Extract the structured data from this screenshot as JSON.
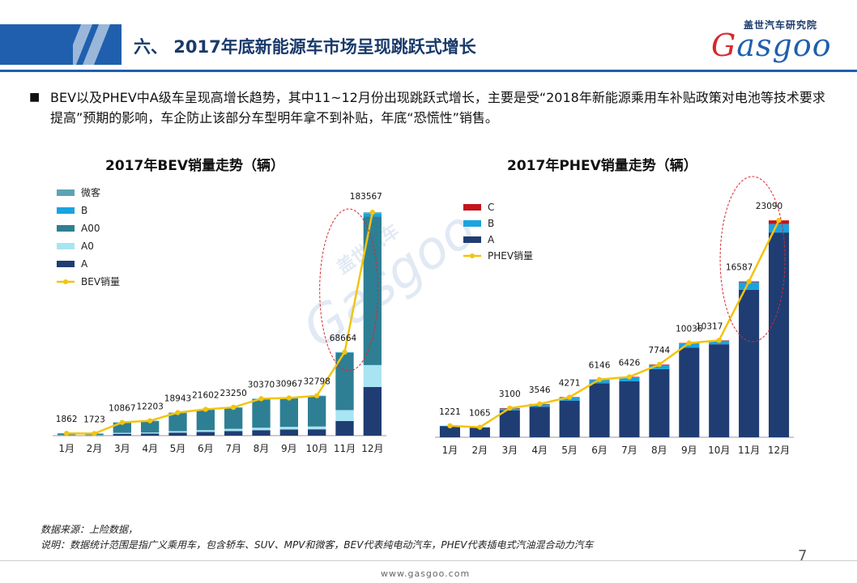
{
  "slide": {
    "title": "六、 2017年底新能源车市场呈现跳跃式增长",
    "bullet": "BEV以及PHEV中A级车呈现高增长趋势，其中11~12月份出现跳跃式增长，主要是受“2018年新能源乘用车补贴政策对电池等技术要求提高”预期的影响，车企防止该部分车型明年拿不到补贴，年底“恐慌性”销售。",
    "bullet_mark": "■",
    "source_note": "数据来源：上险数据，",
    "explain_note": "说明：数据统计范围是指广义乘用车，包含轿车、SUV、MPV和微客，BEV代表纯电动汽车，PHEV代表插电式汽油混合动力汽车",
    "page_number": "7",
    "website": "www.gasgoo.com"
  },
  "logo": {
    "cn": "盖世汽车研究院",
    "en_first": "G",
    "en_rest": "asgoo"
  },
  "watermark": {
    "cn": "盖世汽车",
    "en": "Gasgoo"
  },
  "colors": {
    "brand_blue": "#1f5fae",
    "weike": "#5ba3b5",
    "b": "#1aa3e0",
    "a00": "#2e7f94",
    "a0": "#a9e4f3",
    "a": "#1f3d73",
    "c": "#c0161c",
    "line": "#f2c40f"
  },
  "chart_data": [
    {
      "type": "bar",
      "title": "2017年BEV销量走势（辆）",
      "categories": [
        "1月",
        "2月",
        "3月",
        "4月",
        "5月",
        "6月",
        "7月",
        "8月",
        "9月",
        "10月",
        "11月",
        "12月"
      ],
      "stacked": true,
      "series": [
        {
          "name": "A",
          "color": "#1f3d73",
          "values": [
            300,
            250,
            1500,
            1700,
            2500,
            3000,
            3800,
            4500,
            5000,
            5200,
            12000,
            40000
          ]
        },
        {
          "name": "A0",
          "color": "#a9e4f3",
          "values": [
            200,
            150,
            800,
            900,
            1200,
            1500,
            1800,
            2000,
            2200,
            2300,
            9000,
            18000
          ]
        },
        {
          "name": "A00",
          "color": "#2e7f94",
          "values": [
            1300,
            1250,
            8300,
            9300,
            14800,
            16800,
            17300,
            23500,
            23400,
            24900,
            47000,
            122000
          ]
        },
        {
          "name": "B",
          "color": "#1aa3e0",
          "values": [
            50,
            50,
            200,
            200,
            300,
            200,
            250,
            270,
            250,
            300,
            500,
            2500
          ]
        },
        {
          "name": "微客",
          "color": "#5ba3b5",
          "values": [
            12,
            23,
            67,
            103,
            143,
            102,
            100,
            100,
            117,
            98,
            164,
            1067
          ]
        }
      ],
      "line": {
        "name": "BEV销量",
        "color": "#f2c40f",
        "values": [
          1862,
          1723,
          10867,
          12203,
          18943,
          21602,
          23250,
          30370,
          30967,
          32798,
          68664,
          183567
        ]
      },
      "ylim": [
        0,
        195000
      ],
      "legend": "top-left",
      "highlight": "11月-12月"
    },
    {
      "type": "bar",
      "title": "2017年PHEV销量走势（辆）",
      "categories": [
        "1月",
        "2月",
        "3月",
        "4月",
        "5月",
        "6月",
        "7月",
        "8月",
        "9月",
        "10月",
        "11月",
        "12月"
      ],
      "stacked": true,
      "series": [
        {
          "name": "A",
          "color": "#1f3d73",
          "values": [
            1190,
            1040,
            2850,
            3250,
            3900,
            5750,
            5950,
            7250,
            9550,
            9900,
            15700,
            21800
          ]
        },
        {
          "name": "B",
          "color": "#1aa3e0",
          "values": [
            31,
            25,
            200,
            250,
            320,
            350,
            420,
            440,
            440,
            380,
            800,
            900
          ]
        },
        {
          "name": "C",
          "color": "#c0161c",
          "values": [
            0,
            0,
            50,
            46,
            51,
            46,
            56,
            54,
            46,
            37,
            87,
            390
          ]
        }
      ],
      "line": {
        "name": "PHEV销量",
        "color": "#f2c40f",
        "values": [
          1221,
          1065,
          3100,
          3546,
          4271,
          6146,
          6426,
          7744,
          10036,
          10317,
          16587,
          23090
        ]
      },
      "ylim": [
        0,
        25000
      ],
      "legend": "top-left",
      "highlight": "11月-12月"
    }
  ]
}
